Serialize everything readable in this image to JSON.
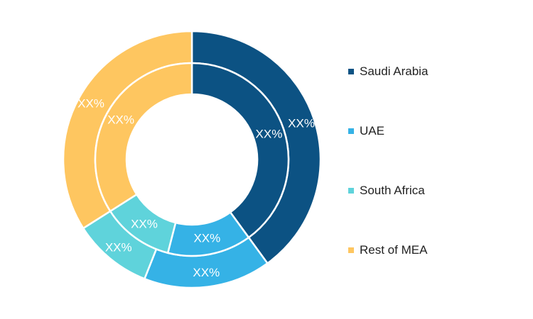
{
  "chart_data": {
    "type": "pie",
    "variant": "nested-donut",
    "categories": [
      "Saudi Arabia",
      "UAE",
      "South Africa",
      "Rest of MEA"
    ],
    "colors": [
      "#0c5283",
      "#35b2e6",
      "#5fd3db",
      "#fec660"
    ],
    "series": [
      {
        "ring": "outer",
        "values": [
          40,
          16,
          10,
          34
        ],
        "labels": [
          "XX%",
          "XX%",
          "XX%",
          "XX%"
        ]
      },
      {
        "ring": "inner",
        "values": [
          40,
          14,
          12,
          34
        ],
        "labels": [
          "XX%",
          "XX%",
          "XX%",
          "XX%"
        ]
      }
    ],
    "legend_position": "right"
  }
}
